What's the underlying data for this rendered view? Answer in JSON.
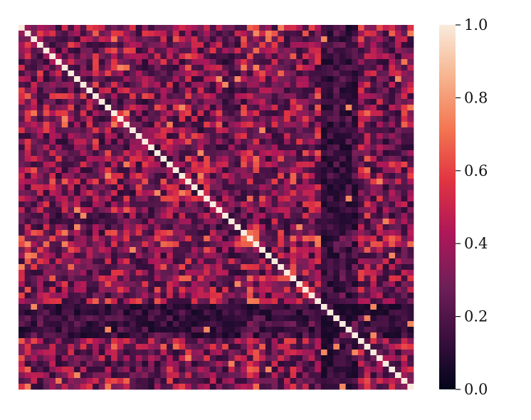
{
  "chart_data": {
    "type": "heatmap",
    "title": "",
    "xlabel": "",
    "ylabel": "",
    "rows": 64,
    "cols": 64,
    "diagonal_value": 1.0,
    "off_diagonal_range": [
      0.05,
      0.75
    ],
    "colormap": "rocket",
    "colormap_stops": [
      "#03051a",
      "#3b0f3f",
      "#701f57",
      "#ae1759",
      "#e13342",
      "#f37651",
      "#f6b48e",
      "#faebdd"
    ],
    "colorbar": {
      "range": [
        0.0,
        1.0
      ],
      "ticks": [
        {
          "value": 0.0,
          "label": "0.0"
        },
        {
          "value": 0.2,
          "label": "0.2"
        },
        {
          "value": 0.4,
          "label": "0.4"
        },
        {
          "value": 0.6,
          "label": "0.6"
        },
        {
          "value": 0.8,
          "label": "0.8"
        },
        {
          "value": 1.0,
          "label": "1.0"
        }
      ]
    },
    "grid": false,
    "x_tick_labels": [],
    "y_tick_labels": [],
    "legend": "colorbar-right"
  }
}
